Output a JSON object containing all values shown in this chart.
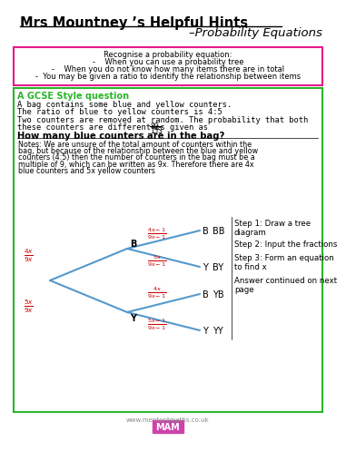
{
  "title_line1": "Mrs Mountney ’s Helpful Hints",
  "title_line2": "–Probability Equations",
  "pink_box_lines": [
    "Recognise a probability equation:",
    "-    When you can use a probability tree",
    "-    When you do not know how many items there are in total",
    "-  You may be given a ratio to identify the relationship between items"
  ],
  "gcse_title": "A GCSE Style question",
  "gcse_body_1": "A bag contains some blue and yellow counters.",
  "gcse_body_2": "The ratio of blue to yellow counters is 4:5",
  "gcse_body_3": "Two counters are removed at random. The probability that both",
  "gcse_body_4": "these counters are different is given as",
  "gcse_body_5": "How many blue counters are in the bag?",
  "notes_lines": [
    "Notes: We are unsure of the total amount of counters within the",
    "bag, but because of the relationship between the blue and yellow",
    "counters (4:5) then the number of counters in the bag must be a",
    "multiple of 9, which can be written as 9x. Therefore there are 4x",
    "blue counters and 5x yellow counters"
  ],
  "steps": [
    "Step 1: Draw a tree\ndiagram",
    "Step 2: Input the fractions",
    "Step 3: Form an equation\nto find x",
    "Answer continued on next\npage"
  ],
  "bg_color": "#ffffff",
  "pink_border": "#e8198b",
  "green_border": "#2ab52a",
  "title_color": "#000000",
  "gcse_title_color": "#2ab52a",
  "fraction_color": "#cc0000",
  "tree_line_color": "#5599cc",
  "footer_url": "www.mentor4maths.co.uk"
}
